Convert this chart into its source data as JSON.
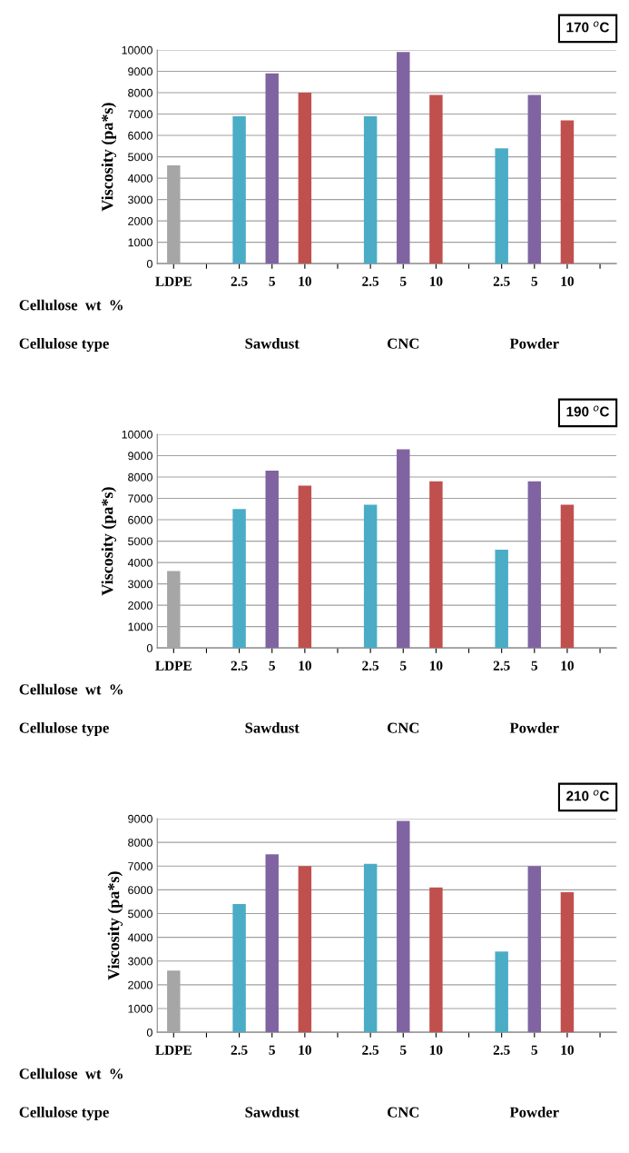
{
  "chart_data": [
    {
      "type": "bar",
      "title": "170 $^{o}$C",
      "ylabel": "Viscosity (pa*s)",
      "categories": [
        "LDPE",
        null,
        "2.5",
        "5",
        "10",
        null,
        "2.5",
        "5",
        "10",
        null,
        "2.5",
        "5",
        "10",
        null
      ],
      "values": [
        4600,
        null,
        6900,
        8900,
        8000,
        null,
        6900,
        9900,
        7900,
        null,
        5400,
        7900,
        6700,
        null
      ],
      "colors": [
        "#a6a6a6",
        "#4bacc6",
        "#4bacc6",
        "#8064a2",
        "#c0504d",
        "#4bacc6",
        "#4bacc6",
        "#8064a2",
        "#c0504d",
        "#4bacc6",
        "#4bacc6",
        "#8064a2",
        "#c0504d",
        "#4bacc6"
      ],
      "ylim": [
        0,
        10000
      ],
      "yticks": [
        0,
        1000,
        2000,
        3000,
        4000,
        5000,
        6000,
        7000,
        8000,
        9000,
        10000
      ],
      "grid": "y",
      "annotations": [
        "Cellulose  wt  %",
        "Cellulose type",
        "Sawdust",
        "CNC",
        "Powder"
      ]
    },
    {
      "type": "bar",
      "title": "190 $^{o}$C",
      "ylabel": "Viscosity (pa*s)",
      "categories": [
        "LDPE",
        null,
        "2.5",
        "5",
        "10",
        null,
        "2.5",
        "5",
        "10",
        null,
        "2.5",
        "5",
        "10",
        null
      ],
      "values": [
        3600,
        null,
        6500,
        8300,
        7600,
        null,
        6700,
        9300,
        7800,
        null,
        4600,
        7800,
        6700,
        null
      ],
      "colors": [
        "#a6a6a6",
        "#4bacc6",
        "#4bacc6",
        "#8064a2",
        "#c0504d",
        "#4bacc6",
        "#4bacc6",
        "#8064a2",
        "#c0504d",
        "#4bacc6",
        "#4bacc6",
        "#8064a2",
        "#c0504d",
        "#4bacc6"
      ],
      "ylim": [
        0,
        10000
      ],
      "yticks": [
        0,
        1000,
        2000,
        3000,
        4000,
        5000,
        6000,
        7000,
        8000,
        9000,
        10000
      ],
      "grid": "y",
      "annotations": [
        "Cellulose  wt  %",
        "Cellulose type",
        "Sawdust",
        "CNC",
        "Powder"
      ]
    },
    {
      "type": "bar",
      "title": "210 $^{o}$C",
      "ylabel": "Viscosity (pa*s)",
      "categories": [
        "LDPE",
        null,
        "2.5",
        "5",
        "10",
        null,
        "2.5",
        "5",
        "10",
        null,
        "2.5",
        "5",
        "10",
        null
      ],
      "values": [
        2600,
        null,
        5400,
        7500,
        7000,
        null,
        7100,
        8900,
        6100,
        null,
        3400,
        7000,
        5900,
        null
      ],
      "colors": [
        "#a6a6a6",
        "#4bacc6",
        "#4bacc6",
        "#8064a2",
        "#c0504d",
        "#4bacc6",
        "#4bacc6",
        "#8064a2",
        "#c0504d",
        "#4bacc6",
        "#4bacc6",
        "#8064a2",
        "#c0504d",
        "#4bacc6"
      ],
      "ylim": [
        0,
        9000
      ],
      "yticks": [
        0,
        1000,
        2000,
        3000,
        4000,
        5000,
        6000,
        7000,
        8000,
        9000
      ],
      "grid": "y",
      "annotations": [
        "Cellulose  wt  %",
        "Cellulose type",
        "Sawdust",
        "CNC",
        "Powder"
      ]
    }
  ]
}
